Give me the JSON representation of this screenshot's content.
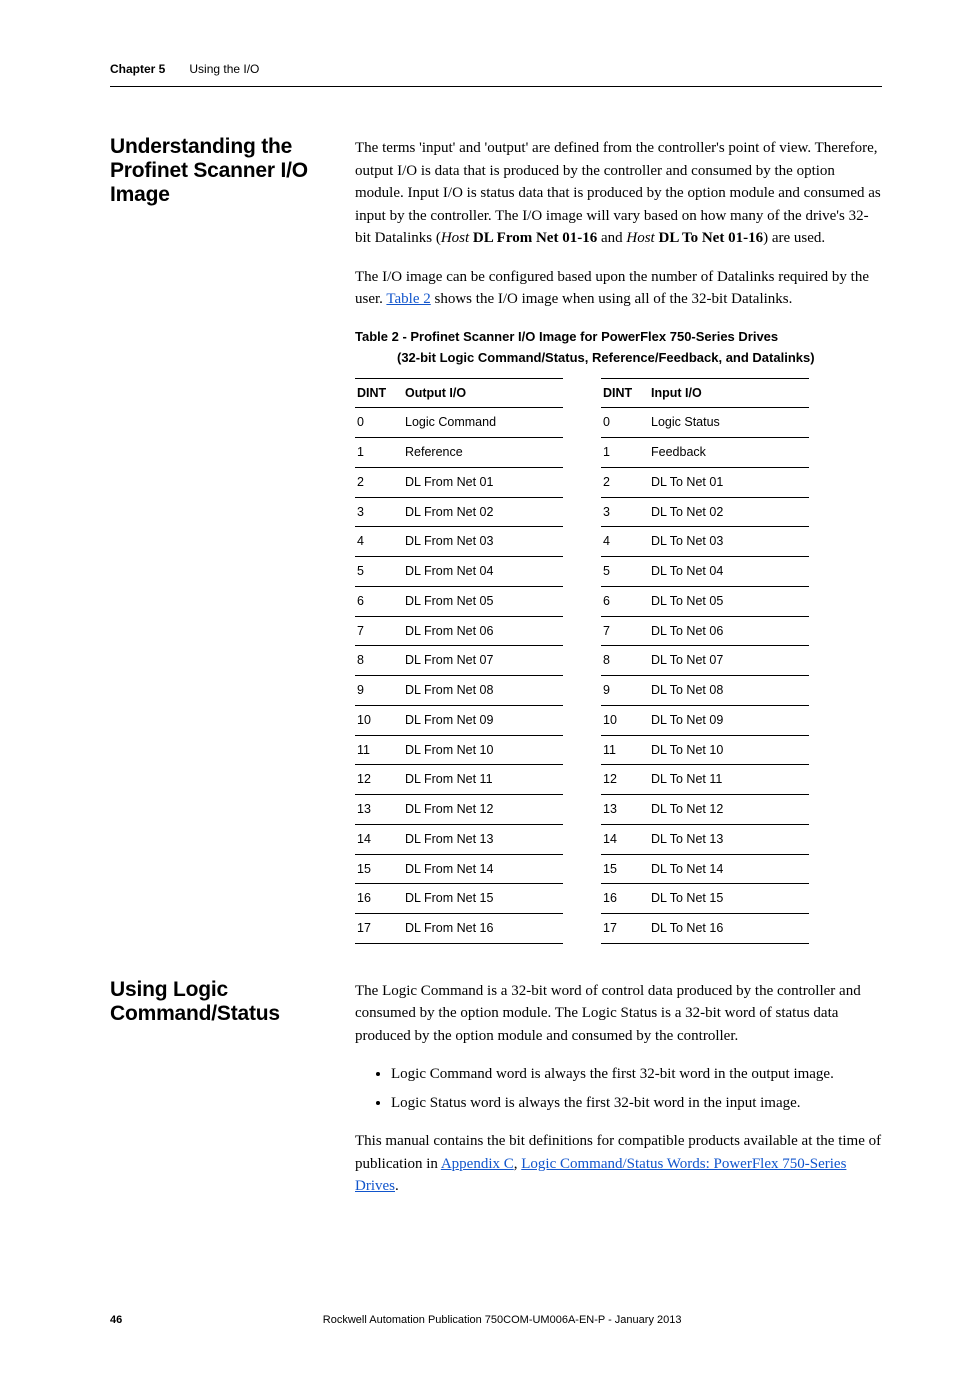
{
  "header": {
    "chapter": "Chapter 5",
    "title": "Using the I/O"
  },
  "section1": {
    "heading": "Understanding the Profinet Scanner I/O Image",
    "p1_a": "The terms 'input' and 'output' are defined from the controller's point of view. Therefore, output I/O is data that is produced by the controller and consumed by the option module. Input I/O is status data that is produced by the option module and consumed as input by the controller. The I/O image will vary based on how many of the drive's 32-bit Datalinks (",
    "p1_b": "Host",
    "p1_c": " DL From Net 01-16",
    "p1_d": " and ",
    "p1_e": "Host",
    "p1_f": " DL To Net 01-16",
    "p1_g": ") are used.",
    "p2_a": "The I/O image can be configured based upon the number of Datalinks required by the user. ",
    "p2_link": "Table 2",
    "p2_b": " shows the I/O image when using all of the 32-bit Datalinks.",
    "table_title": "Table 2 - Profinet Scanner I/O Image for PowerFlex 750-Series Drives",
    "table_subtitle": "(32-bit Logic Command/Status, Reference/Feedback, and Datalinks)",
    "table_output": {
      "h_dint": "DINT",
      "h_val": "Output I/O",
      "rows": [
        {
          "d": "0",
          "v": "Logic Command"
        },
        {
          "d": "1",
          "v": "Reference"
        },
        {
          "d": "2",
          "v": "DL From Net 01"
        },
        {
          "d": "3",
          "v": "DL From Net 02"
        },
        {
          "d": "4",
          "v": "DL From Net 03"
        },
        {
          "d": "5",
          "v": "DL From Net 04"
        },
        {
          "d": "6",
          "v": "DL From Net 05"
        },
        {
          "d": "7",
          "v": "DL From Net 06"
        },
        {
          "d": "8",
          "v": "DL From Net 07"
        },
        {
          "d": "9",
          "v": "DL From Net 08"
        },
        {
          "d": "10",
          "v": "DL From Net 09"
        },
        {
          "d": "11",
          "v": "DL From Net 10"
        },
        {
          "d": "12",
          "v": "DL From Net 11"
        },
        {
          "d": "13",
          "v": "DL From Net 12"
        },
        {
          "d": "14",
          "v": "DL From Net 13"
        },
        {
          "d": "15",
          "v": "DL From Net 14"
        },
        {
          "d": "16",
          "v": "DL From Net 15"
        },
        {
          "d": "17",
          "v": "DL From Net 16"
        }
      ]
    },
    "table_input": {
      "h_dint": "DINT",
      "h_val": "Input I/O",
      "rows": [
        {
          "d": "0",
          "v": "Logic Status"
        },
        {
          "d": "1",
          "v": "Feedback"
        },
        {
          "d": "2",
          "v": "DL To Net 01"
        },
        {
          "d": "3",
          "v": "DL To Net 02"
        },
        {
          "d": "4",
          "v": "DL To Net 03"
        },
        {
          "d": "5",
          "v": "DL To Net 04"
        },
        {
          "d": "6",
          "v": "DL To Net 05"
        },
        {
          "d": "7",
          "v": "DL To Net 06"
        },
        {
          "d": "8",
          "v": "DL To Net 07"
        },
        {
          "d": "9",
          "v": "DL To Net 08"
        },
        {
          "d": "10",
          "v": "DL To Net 09"
        },
        {
          "d": "11",
          "v": "DL To Net 10"
        },
        {
          "d": "12",
          "v": "DL To Net 11"
        },
        {
          "d": "13",
          "v": "DL To Net 12"
        },
        {
          "d": "14",
          "v": "DL To Net 13"
        },
        {
          "d": "15",
          "v": "DL To Net 14"
        },
        {
          "d": "16",
          "v": "DL To Net 15"
        },
        {
          "d": "17",
          "v": "DL To Net 16"
        }
      ]
    }
  },
  "section2": {
    "heading": "Using Logic Command/Status",
    "p1": "The Logic Command is a 32-bit word of control data produced by the controller and consumed by the option module. The Logic Status is a 32-bit word of status data produced by the option module and consumed by the controller.",
    "bullet1": "Logic Command word is always the first 32-bit word in the output image.",
    "bullet2": "Logic Status word is always the first 32-bit word in the input image.",
    "p2_a": "This manual contains the bit definitions for compatible products available at the time of publication in ",
    "p2_link1": "Appendix C",
    "p2_b": ", ",
    "p2_link2": "Logic Command/Status Words: PowerFlex 750-Series Drives",
    "p2_c": "."
  },
  "footer": {
    "pagenum": "46",
    "pub": "Rockwell Automation Publication 750COM-UM006A-EN-P - January 2013"
  }
}
